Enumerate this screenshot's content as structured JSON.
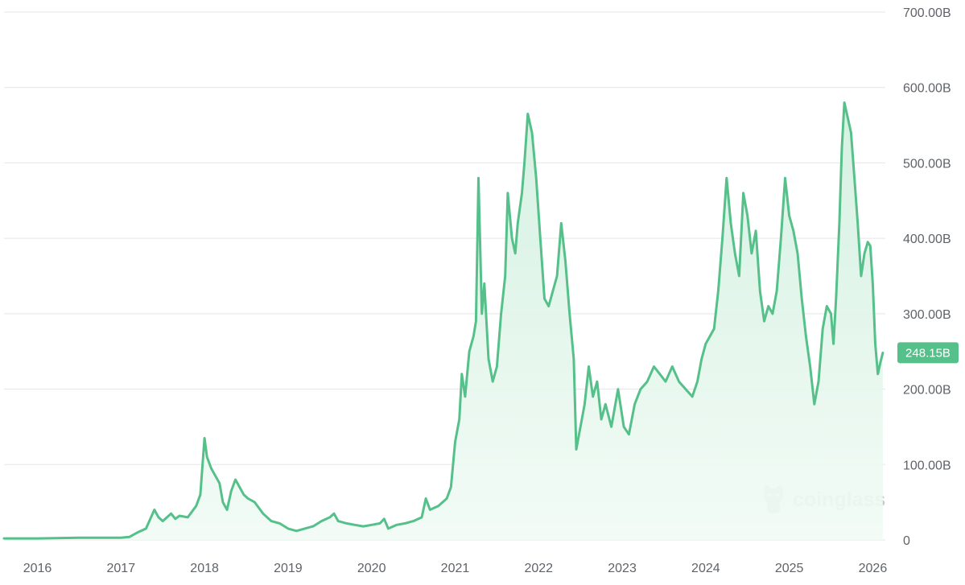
{
  "watermark": {
    "text": "coinglass",
    "icon": "coinglass-logo-icon"
  },
  "colors": {
    "line": "#55c08a",
    "fill_top": "#d3f0e0",
    "fill_bottom": "#f1fbf5",
    "badge": "#55c08a",
    "grid": "#e3e5e8",
    "axis_text": "#5f6368"
  },
  "chart_data": {
    "type": "area",
    "title": "",
    "xlabel": "",
    "ylabel": "",
    "x_ticks": [
      "2016",
      "2017",
      "2018",
      "2019",
      "2020",
      "2021",
      "2022",
      "2023",
      "2024",
      "2025",
      "2026"
    ],
    "y_ticks": [
      "0",
      "100.00B",
      "200.00B",
      "300.00B",
      "400.00B",
      "500.00B",
      "600.00B",
      "700.00B"
    ],
    "ylim": [
      0,
      700
    ],
    "y_unit": "B",
    "xlim": [
      2015.6,
      2026.15
    ],
    "grid": true,
    "current_value_label": "248.15B",
    "current_value": 248.15,
    "series": [
      {
        "values": [
          [
            2015.6,
            2
          ],
          [
            2016.0,
            2
          ],
          [
            2016.5,
            3
          ],
          [
            2017.0,
            3
          ],
          [
            2017.1,
            4
          ],
          [
            2017.2,
            10
          ],
          [
            2017.3,
            15
          ],
          [
            2017.4,
            40
          ],
          [
            2017.45,
            30
          ],
          [
            2017.5,
            25
          ],
          [
            2017.6,
            35
          ],
          [
            2017.65,
            28
          ],
          [
            2017.7,
            32
          ],
          [
            2017.8,
            30
          ],
          [
            2017.9,
            45
          ],
          [
            2017.95,
            60
          ],
          [
            2018.0,
            135
          ],
          [
            2018.03,
            110
          ],
          [
            2018.08,
            95
          ],
          [
            2018.13,
            85
          ],
          [
            2018.18,
            75
          ],
          [
            2018.22,
            50
          ],
          [
            2018.27,
            40
          ],
          [
            2018.32,
            65
          ],
          [
            2018.37,
            80
          ],
          [
            2018.42,
            70
          ],
          [
            2018.47,
            60
          ],
          [
            2018.52,
            55
          ],
          [
            2018.6,
            50
          ],
          [
            2018.7,
            35
          ],
          [
            2018.8,
            25
          ],
          [
            2018.9,
            22
          ],
          [
            2019.0,
            15
          ],
          [
            2019.1,
            12
          ],
          [
            2019.2,
            15
          ],
          [
            2019.3,
            18
          ],
          [
            2019.4,
            25
          ],
          [
            2019.5,
            30
          ],
          [
            2019.55,
            35
          ],
          [
            2019.6,
            25
          ],
          [
            2019.7,
            22
          ],
          [
            2019.8,
            20
          ],
          [
            2019.9,
            18
          ],
          [
            2020.0,
            20
          ],
          [
            2020.1,
            22
          ],
          [
            2020.15,
            28
          ],
          [
            2020.2,
            15
          ],
          [
            2020.3,
            20
          ],
          [
            2020.4,
            22
          ],
          [
            2020.5,
            25
          ],
          [
            2020.6,
            30
          ],
          [
            2020.65,
            55
          ],
          [
            2020.7,
            40
          ],
          [
            2020.8,
            45
          ],
          [
            2020.9,
            55
          ],
          [
            2020.95,
            70
          ],
          [
            2021.0,
            130
          ],
          [
            2021.05,
            160
          ],
          [
            2021.08,
            220
          ],
          [
            2021.12,
            190
          ],
          [
            2021.17,
            250
          ],
          [
            2021.22,
            270
          ],
          [
            2021.25,
            290
          ],
          [
            2021.28,
            480
          ],
          [
            2021.32,
            300
          ],
          [
            2021.35,
            340
          ],
          [
            2021.4,
            240
          ],
          [
            2021.45,
            210
          ],
          [
            2021.5,
            230
          ],
          [
            2021.55,
            300
          ],
          [
            2021.6,
            350
          ],
          [
            2021.63,
            460
          ],
          [
            2021.68,
            400
          ],
          [
            2021.72,
            380
          ],
          [
            2021.75,
            420
          ],
          [
            2021.8,
            460
          ],
          [
            2021.83,
            500
          ],
          [
            2021.87,
            565
          ],
          [
            2021.92,
            540
          ],
          [
            2021.97,
            480
          ],
          [
            2022.02,
            400
          ],
          [
            2022.07,
            320
          ],
          [
            2022.12,
            310
          ],
          [
            2022.17,
            330
          ],
          [
            2022.22,
            350
          ],
          [
            2022.27,
            420
          ],
          [
            2022.32,
            370
          ],
          [
            2022.37,
            300
          ],
          [
            2022.42,
            240
          ],
          [
            2022.45,
            120
          ],
          [
            2022.5,
            150
          ],
          [
            2022.55,
            180
          ],
          [
            2022.6,
            230
          ],
          [
            2022.65,
            190
          ],
          [
            2022.7,
            210
          ],
          [
            2022.75,
            160
          ],
          [
            2022.8,
            180
          ],
          [
            2022.87,
            150
          ],
          [
            2022.95,
            200
          ],
          [
            2023.02,
            150
          ],
          [
            2023.08,
            140
          ],
          [
            2023.15,
            180
          ],
          [
            2023.22,
            200
          ],
          [
            2023.3,
            210
          ],
          [
            2023.38,
            230
          ],
          [
            2023.45,
            220
          ],
          [
            2023.52,
            210
          ],
          [
            2023.6,
            230
          ],
          [
            2023.68,
            210
          ],
          [
            2023.76,
            200
          ],
          [
            2023.84,
            190
          ],
          [
            2023.9,
            210
          ],
          [
            2023.95,
            240
          ],
          [
            2024.0,
            260
          ],
          [
            2024.05,
            270
          ],
          [
            2024.1,
            280
          ],
          [
            2024.15,
            330
          ],
          [
            2024.2,
            400
          ],
          [
            2024.25,
            480
          ],
          [
            2024.3,
            420
          ],
          [
            2024.35,
            380
          ],
          [
            2024.4,
            350
          ],
          [
            2024.45,
            460
          ],
          [
            2024.5,
            430
          ],
          [
            2024.55,
            380
          ],
          [
            2024.6,
            410
          ],
          [
            2024.65,
            330
          ],
          [
            2024.7,
            290
          ],
          [
            2024.75,
            310
          ],
          [
            2024.8,
            300
          ],
          [
            2024.85,
            330
          ],
          [
            2024.9,
            400
          ],
          [
            2024.95,
            480
          ],
          [
            2025.0,
            430
          ],
          [
            2025.05,
            410
          ],
          [
            2025.1,
            380
          ],
          [
            2025.15,
            320
          ],
          [
            2025.2,
            270
          ],
          [
            2025.25,
            230
          ],
          [
            2025.3,
            180
          ],
          [
            2025.35,
            210
          ],
          [
            2025.4,
            280
          ],
          [
            2025.45,
            310
          ],
          [
            2025.5,
            300
          ],
          [
            2025.53,
            260
          ],
          [
            2025.56,
            320
          ],
          [
            2025.6,
            420
          ],
          [
            2025.63,
            520
          ],
          [
            2025.66,
            580
          ],
          [
            2025.7,
            560
          ],
          [
            2025.74,
            540
          ],
          [
            2025.78,
            480
          ],
          [
            2025.82,
            420
          ],
          [
            2025.86,
            350
          ],
          [
            2025.9,
            380
          ],
          [
            2025.94,
            395
          ],
          [
            2025.97,
            390
          ],
          [
            2026.0,
            340
          ],
          [
            2026.03,
            260
          ],
          [
            2026.06,
            220
          ],
          [
            2026.09,
            235
          ],
          [
            2026.12,
            248.15
          ]
        ]
      }
    ]
  }
}
